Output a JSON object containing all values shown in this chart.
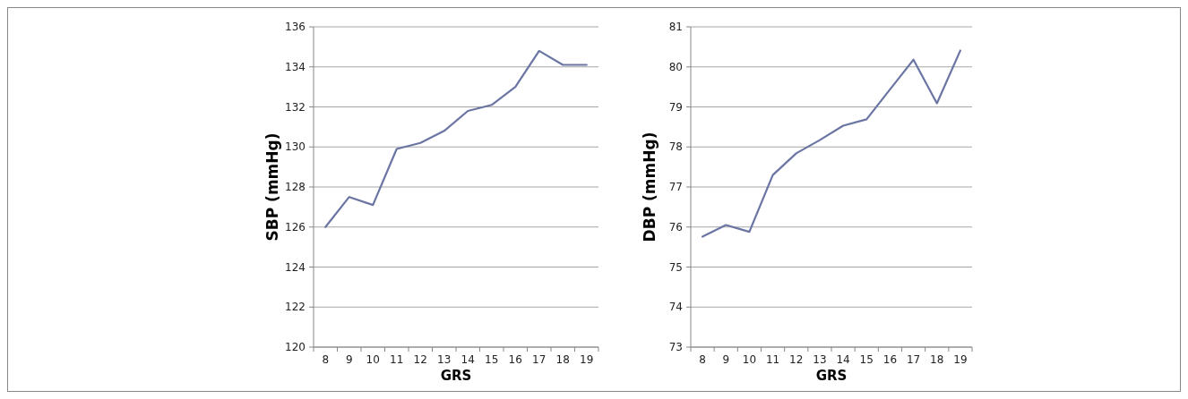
{
  "chart_data": [
    {
      "type": "line",
      "xlabel": "GRS",
      "ylabel": "SBP (mmHg)",
      "categories": [
        "8",
        "9",
        "10",
        "11",
        "12",
        "13",
        "14",
        "15",
        "16",
        "17",
        "18",
        "19"
      ],
      "color": "#6a75a3",
      "values": [
        126.0,
        127.5,
        127.1,
        129.9,
        130.2,
        130.8,
        131.8,
        132.1,
        133.0,
        134.8,
        134.1,
        134.1
      ],
      "ylim": [
        120,
        136
      ],
      "yticks": [
        120,
        122,
        124,
        126,
        128,
        130,
        132,
        134,
        136
      ],
      "grid": "y"
    },
    {
      "type": "line",
      "xlabel": "GRS",
      "ylabel": "DBP (mmHg)",
      "categories": [
        "8",
        "9",
        "10",
        "11",
        "12",
        "13",
        "14",
        "15",
        "16",
        "17",
        "18",
        "19"
      ],
      "color": "#6a75a3",
      "values": [
        75.76,
        76.05,
        75.88,
        77.3,
        77.84,
        78.17,
        78.53,
        78.69,
        79.44,
        80.18,
        79.09,
        80.41
      ],
      "ylim": [
        73,
        81
      ],
      "yticks": [
        73,
        74,
        75,
        76,
        77,
        78,
        79,
        80,
        81
      ],
      "grid": "y"
    }
  ]
}
